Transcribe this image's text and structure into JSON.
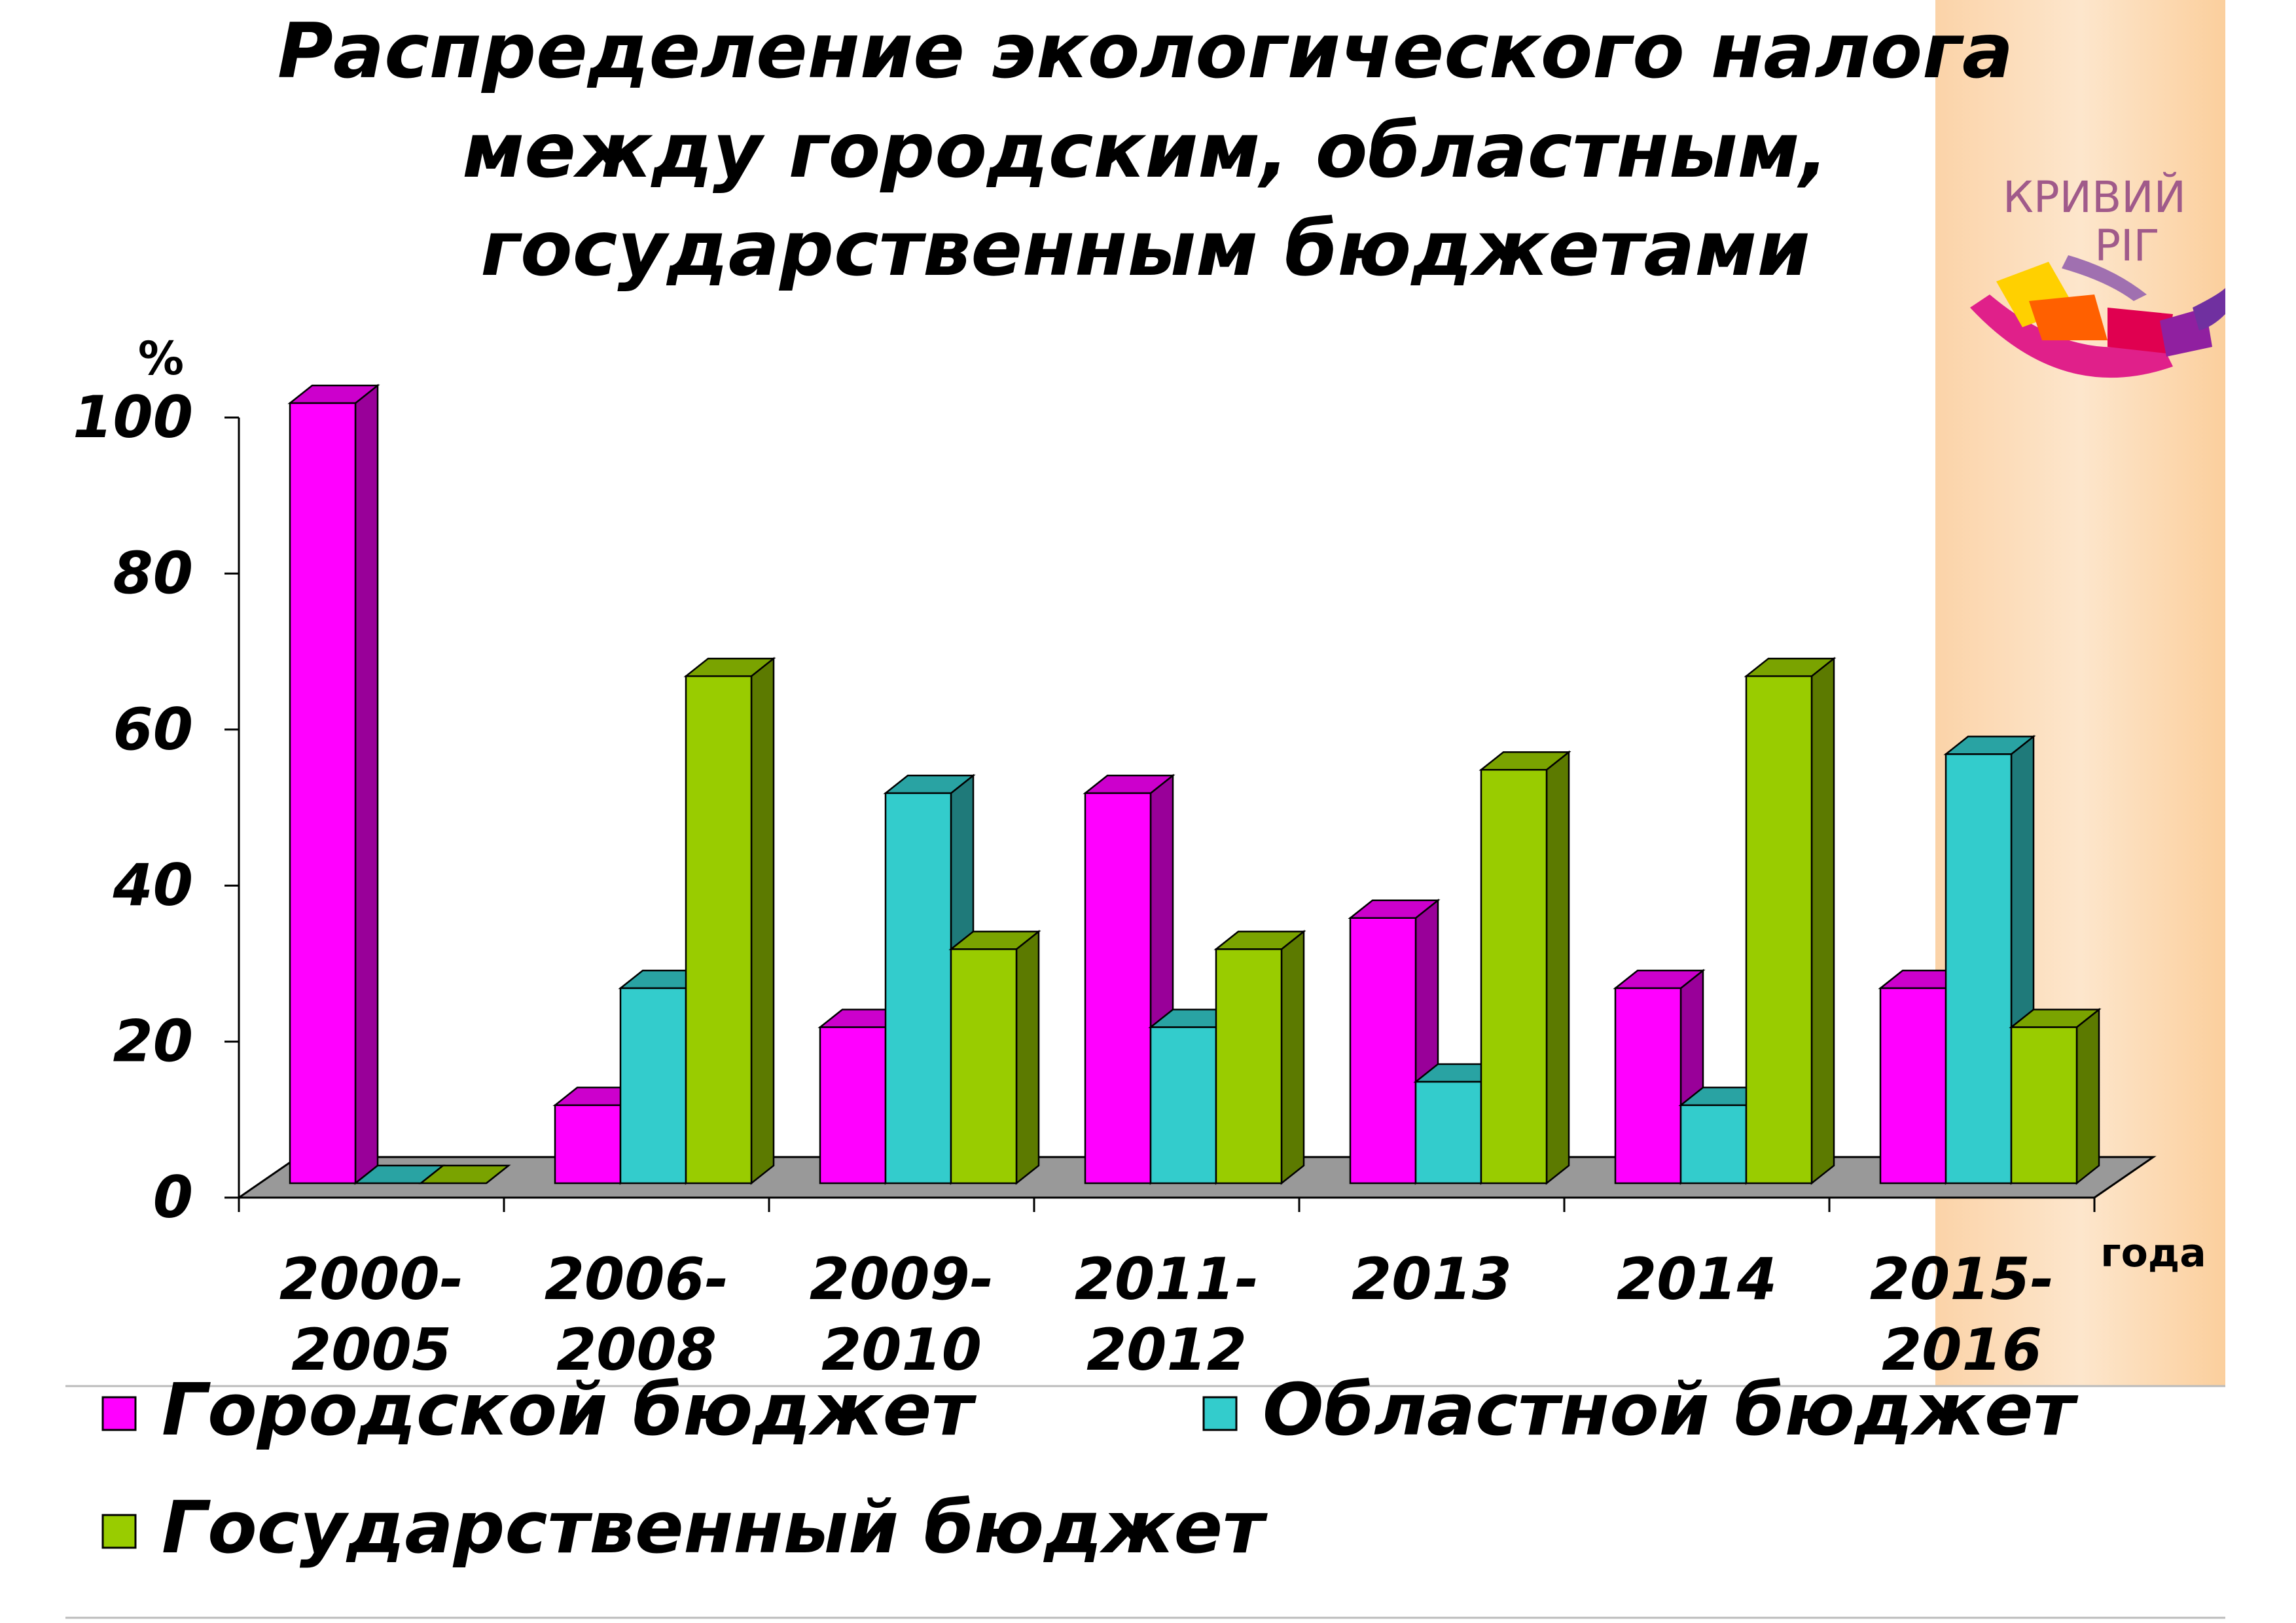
{
  "chart_data": {
    "type": "bar3d",
    "title": [
      "Распределение экологического налога",
      "между городским, областным,",
      "государственным бюджетами"
    ],
    "y_unit_label": "%",
    "x_axis_label": "года",
    "categories": [
      "2000-2005",
      "2006-2008",
      "2009-2010",
      "2011-2012",
      "2013",
      "2014",
      "2015-2016"
    ],
    "series": [
      {
        "name": "Городской бюджет",
        "color": "#ff00ff",
        "values": [
          100,
          10,
          20,
          50,
          34,
          25,
          25
        ]
      },
      {
        "name": "Областной бюджет",
        "color": "#33cccc",
        "values": [
          0,
          25,
          50,
          20,
          13,
          10,
          55
        ]
      },
      {
        "name": "Государственный бюджет",
        "color": "#99cc00",
        "values": [
          0,
          65,
          30,
          30,
          53,
          65,
          20
        ]
      }
    ],
    "ylim": [
      0,
      100
    ],
    "yticks": [
      0,
      20,
      40,
      60,
      80,
      100
    ],
    "logo": [
      "КРИВИЙ",
      "РІГ"
    ]
  }
}
